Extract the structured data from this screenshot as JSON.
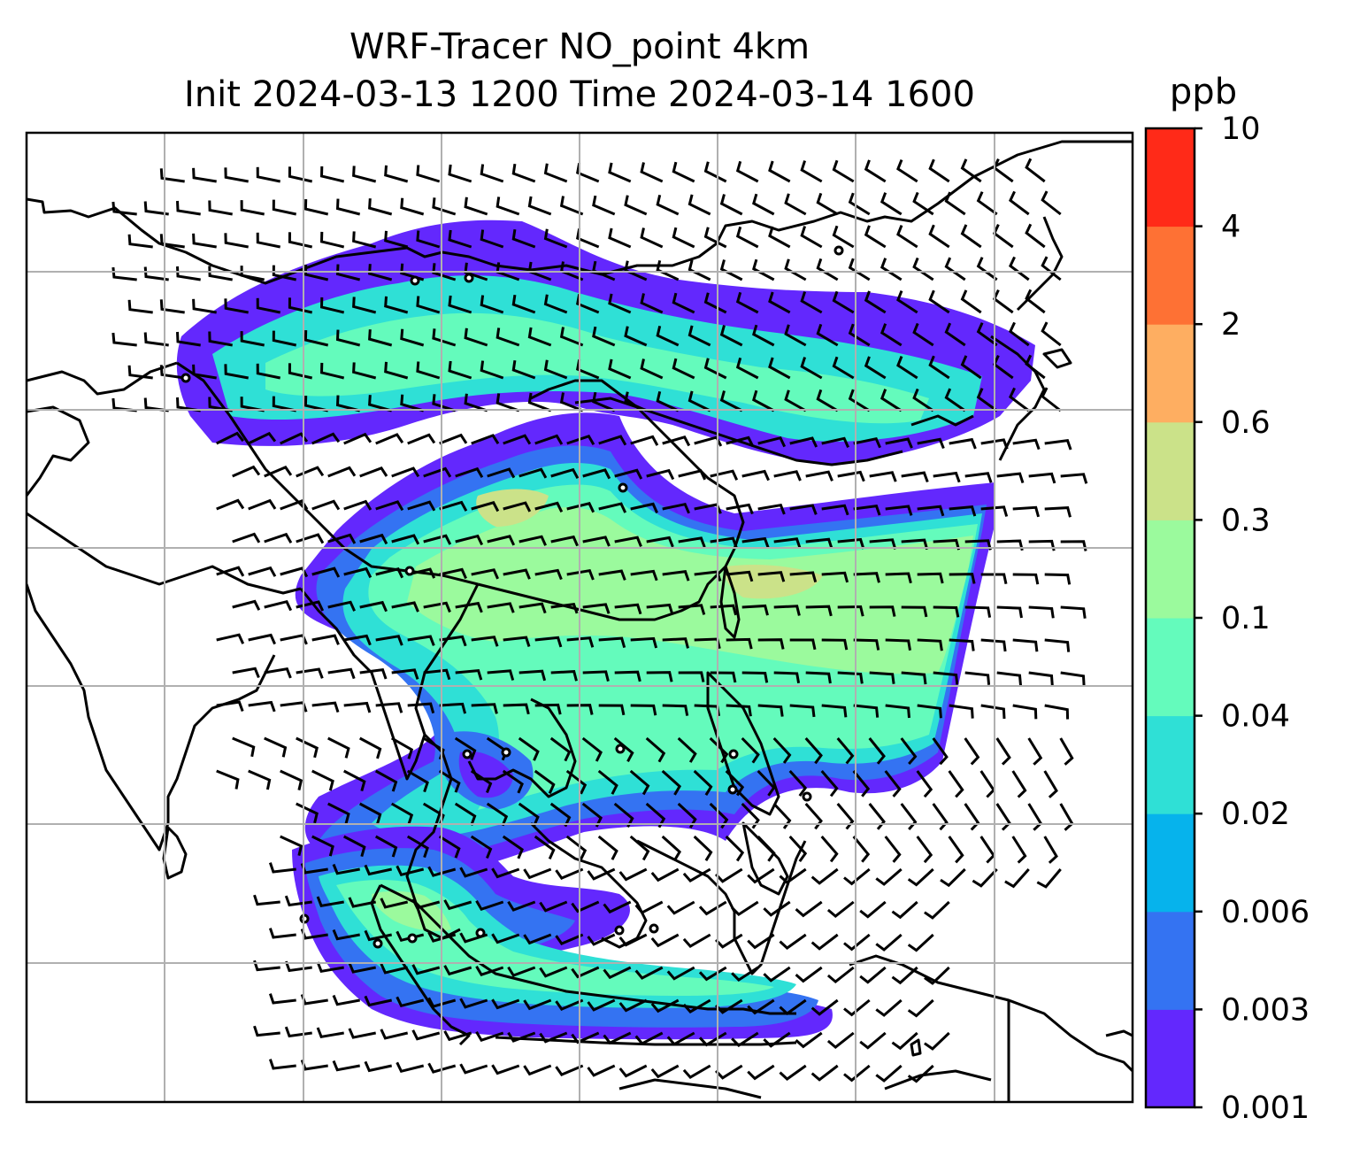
{
  "chart_data": {
    "type": "heatmap",
    "title_line1": "WRF-Tracer NO_point 4km",
    "title_line2": "Init 2024-03-13 1200 Time 2024-03-14 1600",
    "grid": true,
    "colorbar": {
      "label": "ppb",
      "position": "right",
      "levels": [
        "0.001",
        "0.003",
        "0.006",
        "0.02",
        "0.04",
        "0.1",
        "0.3",
        "0.6",
        "2",
        "4",
        "10"
      ],
      "colors": [
        "#6328fd",
        "#3473f2",
        "#06b3ec",
        "#2fe0d6",
        "#64fbbc",
        "#9bfa9d",
        "#cbe289",
        "#feae61",
        "#fe7134",
        "#ff2a18"
      ]
    },
    "field": "NO tracer concentration with wind barbs and point-source markers"
  }
}
